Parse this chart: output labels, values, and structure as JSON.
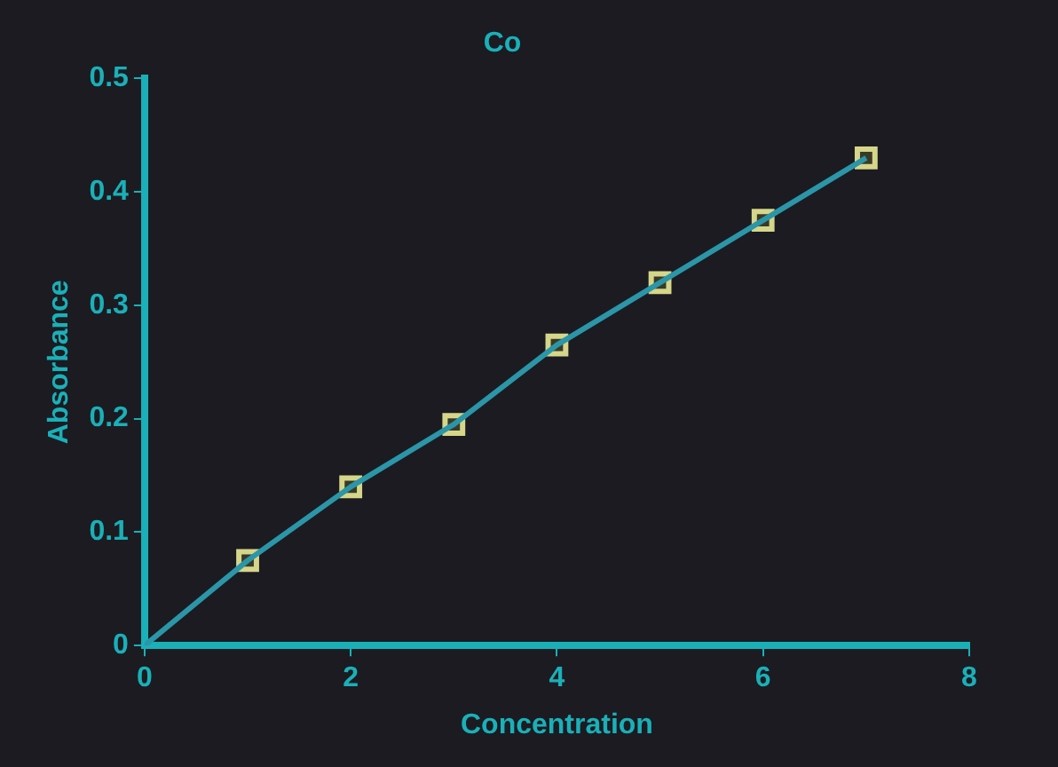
{
  "chart_data": {
    "type": "scatter",
    "title": "Co",
    "xlabel": "Concentration",
    "ylabel": "Absorbance",
    "series": [
      {
        "type": "line",
        "color": "#2a96a8",
        "x": [
          0,
          1,
          2,
          3,
          4,
          5,
          6,
          7
        ],
        "values": [
          0,
          0.075,
          0.14,
          0.195,
          0.265,
          0.32,
          0.375,
          0.43
        ],
        "marker": "none"
      },
      {
        "color": "#d6d68a",
        "x": [
          1,
          2,
          3,
          4,
          5,
          6,
          7
        ],
        "values": [
          0.075,
          0.14,
          0.195,
          0.265,
          0.32,
          0.375,
          0.43
        ],
        "marker": "square"
      }
    ],
    "xlim": [
      0,
      8
    ],
    "xticks": [
      0,
      2,
      4,
      6,
      8
    ],
    "ylim": [
      0,
      0.5
    ],
    "yticks": [
      0,
      0.1,
      0.2,
      0.3,
      0.4,
      0.5
    ],
    "grid": false,
    "legend": false
  }
}
